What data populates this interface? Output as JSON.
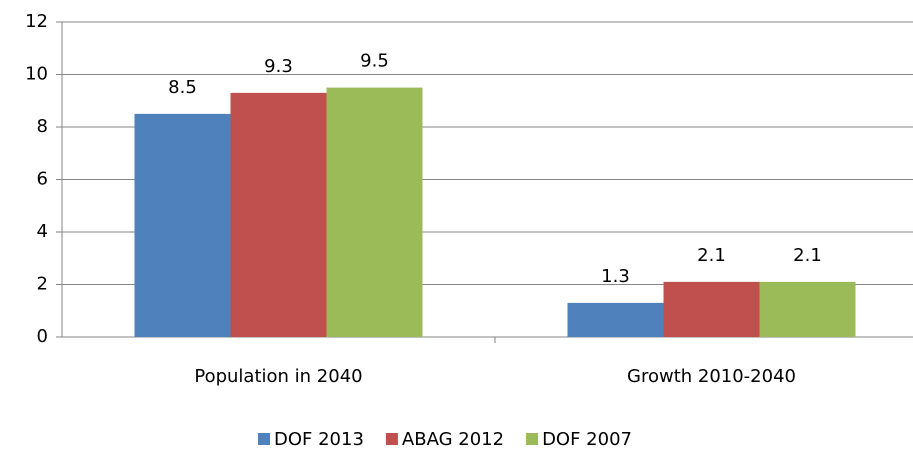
{
  "chart_data": {
    "type": "bar",
    "categories": [
      "Population in 2040",
      "Growth 2010-2040"
    ],
    "series": [
      {
        "name": "DOF 2013",
        "color": "#4f81bd",
        "values": [
          8.5,
          1.3
        ]
      },
      {
        "name": "ABAG 2012",
        "color": "#c0504d",
        "values": [
          9.3,
          2.1
        ]
      },
      {
        "name": "DOF 2007",
        "color": "#9bbb59",
        "values": [
          9.5,
          2.1
        ]
      }
    ],
    "ylim": [
      0,
      12
    ],
    "yticks": [
      0,
      2,
      4,
      6,
      8,
      10,
      12
    ],
    "grid": true,
    "legend": "bottom"
  }
}
